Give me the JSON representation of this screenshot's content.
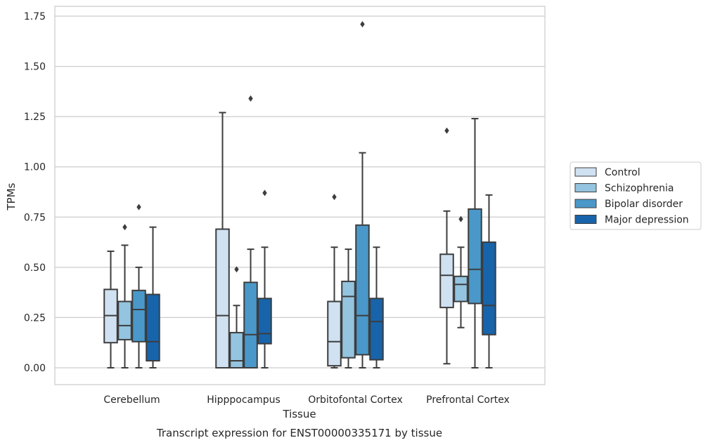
{
  "chart_data": {
    "type": "box",
    "title": "",
    "xlabel": "Tissue",
    "ylabel": "TPMs",
    "caption": "Transcript expression for ENST00000335171 by tissue",
    "ylim": [
      -0.085,
      1.805
    ],
    "yticks": [
      0.0,
      0.25,
      0.5,
      0.75,
      1.0,
      1.25,
      1.5,
      1.75
    ],
    "ytick_labels": [
      "0.00",
      "0.25",
      "0.50",
      "0.75",
      "1.00",
      "1.25",
      "1.50",
      "1.75"
    ],
    "grid": true,
    "legend_position": "right",
    "categories": [
      "Cerebellum",
      "Hipppocampus",
      "Orbitofontal Cortex",
      "Prefrontal Cortex"
    ],
    "series": [
      {
        "name": "Control",
        "color": "#d0e1f2",
        "boxes": [
          {
            "whisker_low": 0.0,
            "q1": 0.125,
            "median": 0.26,
            "q3": 0.39,
            "whisker_high": 0.58,
            "outliers": []
          },
          {
            "whisker_low": 0.0,
            "q1": 0.0,
            "median": 0.26,
            "q3": 0.69,
            "whisker_high": 1.27,
            "outliers": []
          },
          {
            "whisker_low": 0.0,
            "q1": 0.01,
            "median": 0.13,
            "q3": 0.33,
            "whisker_high": 0.6,
            "outliers": [
              0.85
            ]
          },
          {
            "whisker_low": 0.02,
            "q1": 0.3,
            "median": 0.46,
            "q3": 0.565,
            "whisker_high": 0.78,
            "outliers": [
              1.18
            ]
          }
        ]
      },
      {
        "name": "Schizophrenia",
        "color": "#94c4df",
        "boxes": [
          {
            "whisker_low": 0.0,
            "q1": 0.14,
            "median": 0.21,
            "q3": 0.33,
            "whisker_high": 0.61,
            "outliers": [
              0.7
            ]
          },
          {
            "whisker_low": 0.0,
            "q1": 0.0,
            "median": 0.035,
            "q3": 0.175,
            "whisker_high": 0.31,
            "outliers": [
              0.49
            ]
          },
          {
            "whisker_low": 0.0,
            "q1": 0.05,
            "median": 0.355,
            "q3": 0.43,
            "whisker_high": 0.59,
            "outliers": []
          },
          {
            "whisker_low": 0.2,
            "q1": 0.33,
            "median": 0.415,
            "q3": 0.455,
            "whisker_high": 0.6,
            "outliers": [
              0.74
            ]
          }
        ]
      },
      {
        "name": "Bipolar disorder",
        "color": "#4a98c9",
        "boxes": [
          {
            "whisker_low": 0.0,
            "q1": 0.13,
            "median": 0.29,
            "q3": 0.385,
            "whisker_high": 0.5,
            "outliers": [
              0.8
            ]
          },
          {
            "whisker_low": 0.0,
            "q1": 0.0,
            "median": 0.165,
            "q3": 0.425,
            "whisker_high": 0.59,
            "outliers": [
              1.34
            ]
          },
          {
            "whisker_low": 0.0,
            "q1": 0.065,
            "median": 0.26,
            "q3": 0.71,
            "whisker_high": 1.07,
            "outliers": [
              1.71
            ]
          },
          {
            "whisker_low": 0.0,
            "q1": 0.32,
            "median": 0.49,
            "q3": 0.79,
            "whisker_high": 1.24,
            "outliers": []
          }
        ]
      },
      {
        "name": "Major depression",
        "color": "#1764ab",
        "boxes": [
          {
            "whisker_low": 0.0,
            "q1": 0.035,
            "median": 0.13,
            "q3": 0.365,
            "whisker_high": 0.7,
            "outliers": []
          },
          {
            "whisker_low": 0.0,
            "q1": 0.12,
            "median": 0.17,
            "q3": 0.345,
            "whisker_high": 0.6,
            "outliers": [
              0.87
            ]
          },
          {
            "whisker_low": 0.0,
            "q1": 0.04,
            "median": 0.23,
            "q3": 0.345,
            "whisker_high": 0.6,
            "outliers": []
          },
          {
            "whisker_low": 0.0,
            "q1": 0.165,
            "median": 0.31,
            "q3": 0.625,
            "whisker_high": 0.86,
            "outliers": []
          }
        ]
      }
    ]
  }
}
